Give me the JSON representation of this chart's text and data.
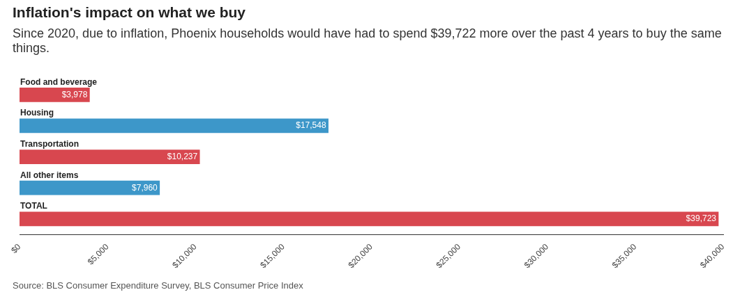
{
  "chart_data": {
    "type": "bar",
    "orientation": "horizontal",
    "title": "Inflation's impact on what we buy",
    "subtitle": "Since 2020, due to inflation, Phoenix households would have had to spend $39,722 more over the past 4 years to buy the same things.",
    "categories": [
      "Food and beverage",
      "Housing",
      "Transportation",
      "All other items",
      "TOTAL"
    ],
    "values": [
      3978,
      17548,
      10237,
      7960,
      39723
    ],
    "colors": [
      "#d8474f",
      "#3d97c9",
      "#d8474f",
      "#3d97c9",
      "#d8474f"
    ],
    "value_labels": [
      "$3,978",
      "$17,548",
      "$10,237",
      "$7,960",
      "$39,723"
    ],
    "xlim": [
      0,
      40000
    ],
    "xticks": [
      {
        "value": 0,
        "label": "$0"
      },
      {
        "value": 5000,
        "label": "$5,000"
      },
      {
        "value": 10000,
        "label": "$10,000"
      },
      {
        "value": 15000,
        "label": "$15,000"
      },
      {
        "value": 20000,
        "label": "$20,000"
      },
      {
        "value": 25000,
        "label": "$25,000"
      },
      {
        "value": 30000,
        "label": "$30,000"
      },
      {
        "value": 35000,
        "label": "$35,000"
      },
      {
        "value": 40000,
        "label": "$40,000"
      }
    ],
    "grid": false,
    "legend": false,
    "annotations": [
      "Source: BLS Consumer Expenditure Survey, BLS Consumer Price Index"
    ]
  }
}
